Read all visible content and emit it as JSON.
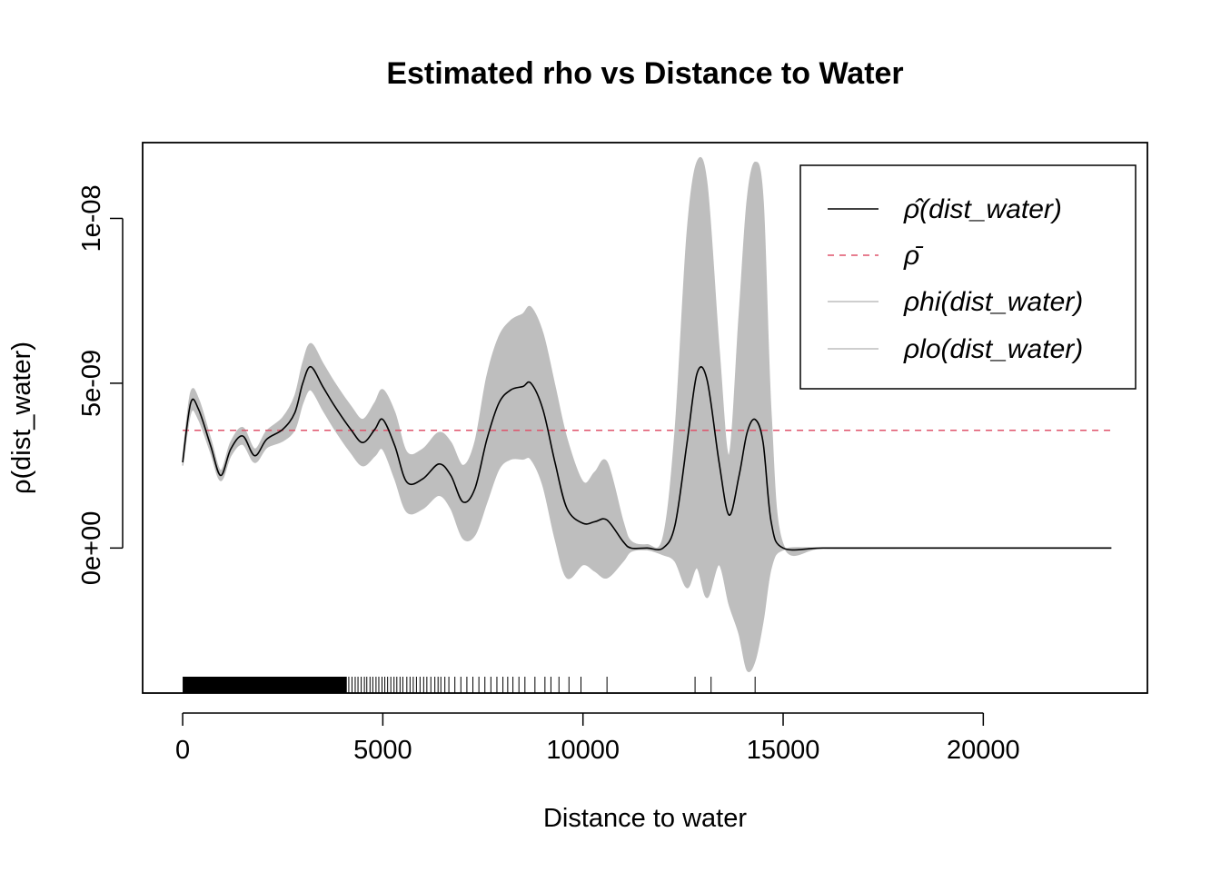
{
  "chart_data": {
    "type": "line",
    "title": "Estimated rho vs Distance to Water",
    "xlabel": "Distance to water",
    "ylabel": "ρ(dist_water)",
    "xlim": [
      -1000,
      24100
    ],
    "ylim": [
      -4.4e-09,
      1.23e-08
    ],
    "x_ticks": [
      0,
      5000,
      10000,
      15000,
      20000
    ],
    "x_tick_labels": [
      "0",
      "5000",
      "10000",
      "15000",
      "20000"
    ],
    "y_ticks": [
      0,
      5e-09,
      1e-08
    ],
    "y_tick_labels": [
      "0e+00",
      "5e-09",
      "1e-08"
    ],
    "grid": false,
    "legend_position": "top-right",
    "legend": [
      {
        "label": "ρ̂(dist_water)",
        "color": "#000000",
        "dash": "solid"
      },
      {
        "label": "ρ̄",
        "color": "#DF536B",
        "dash": "dashed"
      },
      {
        "label": "ρhi(dist_water)",
        "color": "#BEBEBE",
        "dash": "solid"
      },
      {
        "label": "ρlo(dist_water)",
        "color": "#BEBEBE",
        "dash": "solid"
      }
    ],
    "series": [
      {
        "name": "ρ̂(dist_water)",
        "color": "#000000",
        "x": [
          0,
          200,
          400,
          700,
          950,
          1200,
          1500,
          1800,
          2100,
          2500,
          2800,
          3000,
          3200,
          3500,
          3800,
          4200,
          4500,
          4800,
          5000,
          5300,
          5600,
          6000,
          6400,
          6700,
          7000,
          7300,
          7600,
          7900,
          8200,
          8500,
          8700,
          9000,
          9300,
          9600,
          10000,
          10300,
          10600,
          11000,
          11200,
          11600,
          12000,
          12300,
          12600,
          12850,
          13100,
          13400,
          13650,
          13900,
          14100,
          14300,
          14500,
          14700,
          15000,
          16000,
          18000,
          20000,
          23200
        ],
        "y": [
          2.6e-09,
          4.4e-09,
          4.2e-09,
          3.1e-09,
          2.2e-09,
          3e-09,
          3.4e-09,
          2.8e-09,
          3.3e-09,
          3.6e-09,
          4.1e-09,
          5e-09,
          5.5e-09,
          4.9e-09,
          4.3e-09,
          3.6e-09,
          3.2e-09,
          3.6e-09,
          3.9e-09,
          3.1e-09,
          2e-09,
          2.1e-09,
          2.55e-09,
          2.2e-09,
          1.4e-09,
          1.8e-09,
          3.3e-09,
          4.4e-09,
          4.8e-09,
          4.9e-09,
          5e-09,
          4.2e-09,
          2.6e-09,
          1.2e-09,
          7.5e-10,
          8e-10,
          8.5e-10,
          2e-10,
          0.0,
          0.0,
          0.0,
          7e-10,
          3.2e-09,
          5.3e-09,
          5.1e-09,
          2.6e-09,
          1e-09,
          2.2e-09,
          3.5e-09,
          3.9e-09,
          3.2e-09,
          8e-10,
          0.0,
          0.0,
          0.0,
          0.0,
          0.0
        ]
      },
      {
        "name": "ρ̄",
        "color": "#DF536B",
        "x": [
          0,
          23200
        ],
        "y": [
          3.57e-09,
          3.57e-09
        ]
      },
      {
        "name": "ρhi(dist_water)",
        "color": "#BEBEBE",
        "x": [
          0,
          200,
          400,
          700,
          950,
          1200,
          1500,
          1800,
          2100,
          2500,
          2800,
          3000,
          3200,
          3500,
          3800,
          4200,
          4500,
          4800,
          5000,
          5300,
          5600,
          6000,
          6400,
          6700,
          7000,
          7300,
          7600,
          7900,
          8200,
          8500,
          8700,
          9000,
          9300,
          9600,
          10000,
          10300,
          10600,
          11000,
          11200,
          11600,
          12000,
          12300,
          12600,
          12850,
          13100,
          13400,
          13650,
          13900,
          14100,
          14300,
          14500,
          14700,
          15000,
          16000,
          18000,
          20000,
          23200
        ],
        "y": [
          2.7e-09,
          4.7e-09,
          4.5e-09,
          3.3e-09,
          2.35e-09,
          3.2e-09,
          3.65e-09,
          3e-09,
          3.55e-09,
          3.95e-09,
          4.6e-09,
          5.6e-09,
          6.2e-09,
          5.6e-09,
          5e-09,
          4.3e-09,
          3.9e-09,
          4.4e-09,
          4.8e-09,
          4.1e-09,
          2.9e-09,
          3e-09,
          3.5e-09,
          3.2e-09,
          2.5e-09,
          3.2e-09,
          5.2e-09,
          6.4e-09,
          6.9e-09,
          7.1e-09,
          7.3e-09,
          6.5e-09,
          4.9e-09,
          3.3e-09,
          2e-09,
          2.3e-09,
          2.6e-09,
          8e-10,
          2e-10,
          1e-10,
          3e-10,
          3.5e-09,
          9.5e-09,
          1.17e-08,
          1.1e-08,
          6e-09,
          2.8e-09,
          7e-09,
          1.05e-08,
          1.17e-08,
          1.05e-08,
          4e-09,
          1e-10,
          0.0,
          0.0,
          0.0,
          0.0
        ]
      },
      {
        "name": "ρlo(dist_water)",
        "color": "#BEBEBE",
        "x": [
          0,
          200,
          400,
          700,
          950,
          1200,
          1500,
          1800,
          2100,
          2500,
          2800,
          3000,
          3200,
          3500,
          3800,
          4200,
          4500,
          4800,
          5000,
          5300,
          5600,
          6000,
          6400,
          6700,
          7000,
          7300,
          7600,
          7900,
          8200,
          8500,
          8700,
          9000,
          9300,
          9600,
          10000,
          10300,
          10600,
          11000,
          11200,
          11600,
          12000,
          12300,
          12600,
          12850,
          13100,
          13400,
          13650,
          13900,
          14100,
          14300,
          14500,
          14700,
          15000,
          16000,
          18000,
          20000,
          23200
        ],
        "y": [
          2.5e-09,
          4.1e-09,
          3.9e-09,
          2.9e-09,
          2.05e-09,
          2.8e-09,
          3.15e-09,
          2.6e-09,
          3.05e-09,
          3.25e-09,
          3.6e-09,
          4.4e-09,
          4.8e-09,
          4.2e-09,
          3.6e-09,
          2.9e-09,
          2.5e-09,
          2.8e-09,
          3e-09,
          2.1e-09,
          1.1e-09,
          1.2e-09,
          1.6e-09,
          1.2e-09,
          3e-10,
          4e-10,
          1.4e-09,
          2.4e-09,
          2.7e-09,
          2.7e-09,
          2.7e-09,
          1.9e-09,
          3e-10,
          -9e-10,
          -5e-10,
          -7e-10,
          -9e-10,
          -4e-10,
          -1e-10,
          -5e-11,
          -2e-10,
          -4e-10,
          -1.2e-09,
          -6e-10,
          -1.5e-09,
          -5e-10,
          -1.7e-09,
          -2.6e-09,
          -3.7e-09,
          -3.4e-09,
          -2.2e-09,
          -6e-10,
          -5e-11,
          0.0,
          0.0,
          0.0,
          0.0
        ]
      }
    ],
    "rug": {
      "solid_range": [
        0,
        4100
      ],
      "ticks": [
        4150,
        4230,
        4310,
        4380,
        4460,
        4540,
        4600,
        4680,
        4750,
        4830,
        4900,
        4980,
        5050,
        5120,
        5200,
        5280,
        5350,
        5430,
        5500,
        5600,
        5680,
        5760,
        5840,
        5930,
        6020,
        6100,
        6200,
        6300,
        6380,
        6450,
        6550,
        6650,
        6800,
        6950,
        7100,
        7250,
        7400,
        7550,
        7700,
        7850,
        8000,
        8120,
        8250,
        8400,
        8550,
        8800,
        9050,
        9200,
        9400,
        9650,
        9950,
        10600,
        12800,
        13200,
        14300
      ]
    }
  }
}
